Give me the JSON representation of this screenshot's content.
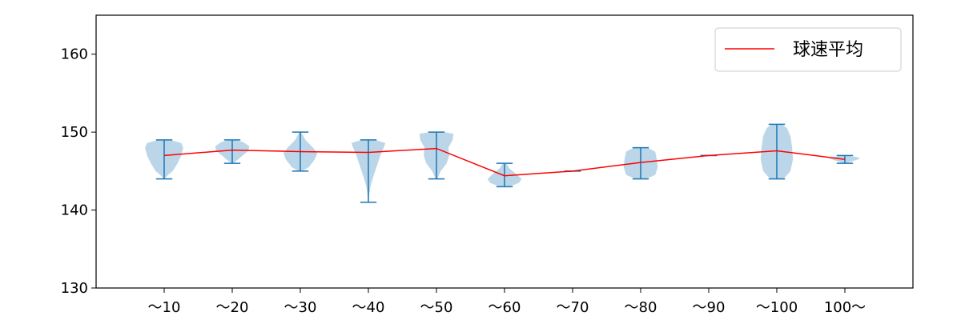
{
  "chart_data": {
    "type": "violin",
    "title": "",
    "xlabel": "",
    "ylabel": "",
    "categories": [
      "～10",
      "～20",
      "～30",
      "～40",
      "～50",
      "～60",
      "～70",
      "～80",
      "～90",
      "～100",
      "100～"
    ],
    "ylim": [
      130,
      165
    ],
    "yticks": [
      130,
      140,
      150,
      160
    ],
    "grid": false,
    "legend": {
      "position": "top-right",
      "entries": [
        {
          "label": "球速平均",
          "color": "#ff0000"
        }
      ]
    },
    "violins": [
      {
        "min": 144,
        "max": 149,
        "halfwidth": 0.28,
        "profile": [
          [
            144,
            0.02
          ],
          [
            144.5,
            0.2
          ],
          [
            145,
            0.45
          ],
          [
            146,
            0.7
          ],
          [
            147,
            0.9
          ],
          [
            148,
            1.0
          ],
          [
            148.6,
            0.9
          ],
          [
            149,
            0.3
          ]
        ]
      },
      {
        "min": 146,
        "max": 149,
        "halfwidth": 0.25,
        "profile": [
          [
            146,
            0.05
          ],
          [
            146.5,
            0.35
          ],
          [
            147,
            0.6
          ],
          [
            147.6,
            0.95
          ],
          [
            148.2,
            1.0
          ],
          [
            148.7,
            0.65
          ],
          [
            149,
            0.2
          ]
        ]
      },
      {
        "min": 145,
        "max": 150,
        "halfwidth": 0.25,
        "profile": [
          [
            145,
            0.1
          ],
          [
            145.5,
            0.5
          ],
          [
            146.5,
            0.85
          ],
          [
            147.3,
            1.0
          ],
          [
            148,
            0.75
          ],
          [
            149,
            0.3
          ],
          [
            150,
            0.05
          ]
        ]
      },
      {
        "min": 141,
        "max": 149,
        "halfwidth": 0.25,
        "profile": [
          [
            141,
            0.02
          ],
          [
            142,
            0.05
          ],
          [
            143,
            0.12
          ],
          [
            144,
            0.25
          ],
          [
            145,
            0.4
          ],
          [
            146,
            0.55
          ],
          [
            147,
            0.7
          ],
          [
            148,
            0.9
          ],
          [
            148.6,
            1.0
          ],
          [
            149,
            0.4
          ]
        ]
      },
      {
        "min": 144,
        "max": 150,
        "halfwidth": 0.25,
        "profile": [
          [
            144,
            0.05
          ],
          [
            145,
            0.25
          ],
          [
            146,
            0.6
          ],
          [
            147,
            0.75
          ],
          [
            148,
            0.7
          ],
          [
            149,
            0.95
          ],
          [
            149.8,
            1.0
          ],
          [
            150,
            0.4
          ]
        ]
      },
      {
        "min": 143,
        "max": 146,
        "halfwidth": 0.25,
        "profile": [
          [
            143,
            0.3
          ],
          [
            143.5,
            0.85
          ],
          [
            144,
            1.0
          ],
          [
            144.6,
            0.7
          ],
          [
            145.3,
            0.3
          ],
          [
            146,
            0.1
          ]
        ]
      },
      {
        "min": 145,
        "max": 145,
        "halfwidth": 0.1,
        "profile": []
      },
      {
        "min": 144,
        "max": 148,
        "halfwidth": 0.25,
        "profile": [
          [
            144,
            0.3
          ],
          [
            144.5,
            0.85
          ],
          [
            145.5,
            1.0
          ],
          [
            146.5,
            0.95
          ],
          [
            147.5,
            0.85
          ],
          [
            148,
            0.4
          ]
        ]
      },
      {
        "min": 147,
        "max": 147,
        "halfwidth": 0.1,
        "profile": []
      },
      {
        "min": 144,
        "max": 151,
        "halfwidth": 0.25,
        "profile": [
          [
            144,
            0.4
          ],
          [
            145,
            0.8
          ],
          [
            146.5,
            0.95
          ],
          [
            148,
            0.9
          ],
          [
            149.5,
            0.8
          ],
          [
            150.5,
            0.6
          ],
          [
            151,
            0.3
          ]
        ]
      },
      {
        "min": 146,
        "max": 147,
        "halfwidth": 0.25,
        "profile": [
          [
            146,
            0.05
          ],
          [
            146.2,
            0.35
          ],
          [
            146.6,
            0.9
          ],
          [
            146.8,
            0.7
          ],
          [
            147,
            0.1
          ]
        ]
      }
    ],
    "series": [
      {
        "name": "球速平均",
        "color": "#ff0000",
        "values": [
          147.0,
          147.7,
          147.5,
          147.4,
          147.9,
          144.4,
          145.0,
          146.1,
          147.0,
          147.6,
          146.5
        ]
      }
    ],
    "colors": {
      "violin_fill": "#1f77b4",
      "violin_fill_opacity": 0.3,
      "whisker": "#1f77b4",
      "axis": "#000000"
    }
  }
}
